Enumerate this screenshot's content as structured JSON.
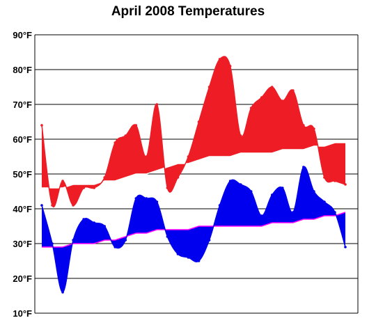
{
  "chart_data": {
    "type": "area",
    "title": "April 2008 Temperatures",
    "xlabel": "",
    "ylabel": "",
    "ylim": [
      10,
      90
    ],
    "yticks": [
      10,
      20,
      30,
      40,
      50,
      60,
      70,
      80,
      90
    ],
    "ytick_labels": [
      "10°F",
      "20°F",
      "30°F",
      "40°F",
      "50°F",
      "60°F",
      "70°F",
      "80°F",
      "90°F"
    ],
    "x": [
      1,
      2,
      3,
      4,
      5,
      6,
      7,
      8,
      9,
      10,
      11,
      12,
      13,
      14,
      15,
      16,
      17,
      18,
      19,
      20,
      21,
      22,
      23,
      24,
      25,
      26,
      27,
      28,
      29,
      30
    ],
    "grid": true,
    "legend": "none",
    "series": [
      {
        "key": "normal_high",
        "values": [
          46,
          46,
          46,
          47,
          47,
          47,
          48,
          48,
          49,
          50,
          50,
          51,
          52,
          53,
          53,
          54,
          55,
          55,
          55,
          56,
          56,
          56,
          56,
          57,
          57,
          57,
          58,
          58,
          59,
          59
        ],
        "color": "#ffffff"
      },
      {
        "key": "actual_high",
        "values": [
          64,
          41,
          48,
          41,
          46,
          46,
          49,
          59,
          61,
          64,
          55,
          70,
          46,
          49,
          55,
          65,
          75,
          83,
          81,
          61,
          69,
          72,
          75,
          71,
          74,
          64,
          63,
          49,
          48,
          47
        ],
        "color": "#ee1c25"
      },
      {
        "key": "normal_low",
        "values": [
          29,
          29,
          29,
          30,
          30,
          30,
          31,
          31,
          32,
          33,
          33,
          34,
          34,
          34,
          34,
          35,
          35,
          35,
          35,
          35,
          35,
          35,
          36,
          36,
          36,
          37,
          37,
          38,
          38,
          39
        ],
        "color": "#ff00ff"
      },
      {
        "key": "actual_low",
        "values": [
          41,
          30,
          16,
          31,
          37,
          36,
          35,
          29,
          31,
          43,
          43,
          42,
          32,
          27,
          26,
          25,
          31,
          41,
          48,
          47,
          45,
          38,
          44,
          46,
          39,
          52,
          45,
          42,
          39,
          29
        ],
        "color": "#0000ee"
      }
    ]
  }
}
